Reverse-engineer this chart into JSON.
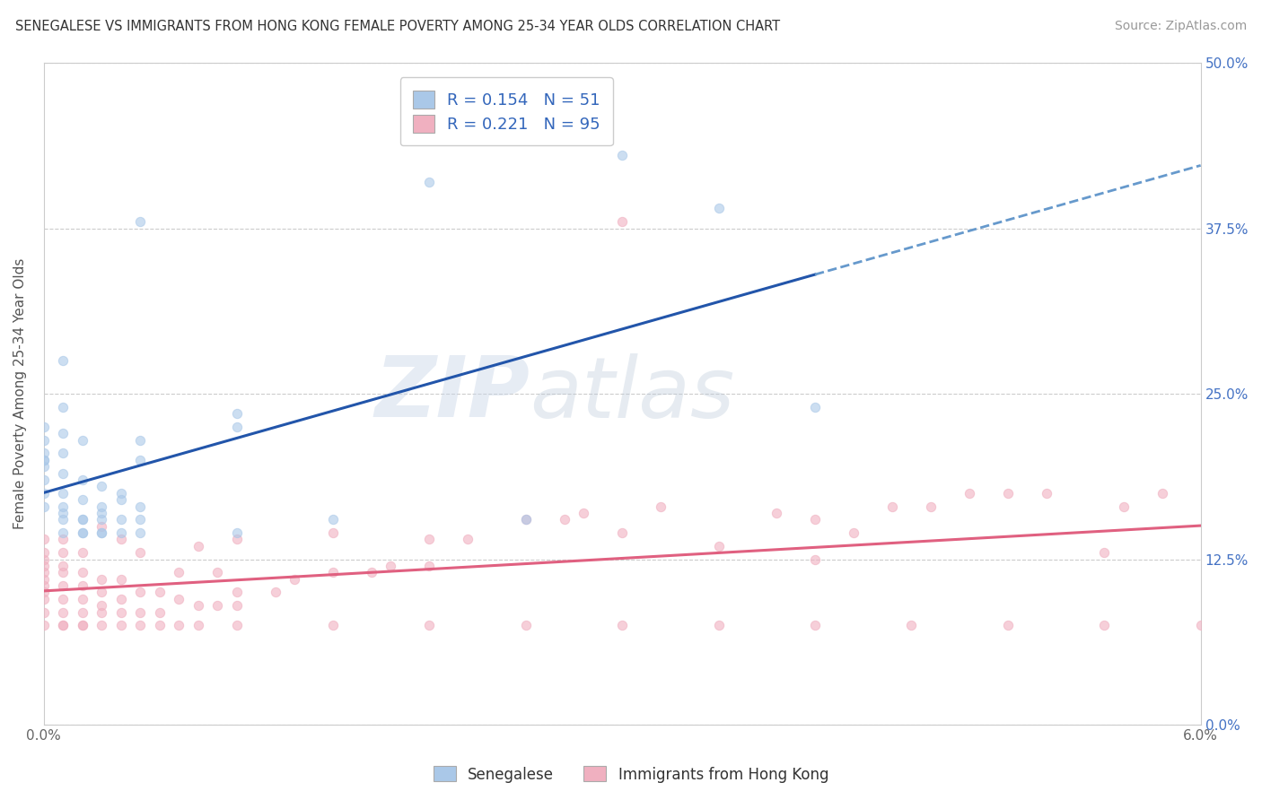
{
  "title": "SENEGALESE VS IMMIGRANTS FROM HONG KONG FEMALE POVERTY AMONG 25-34 YEAR OLDS CORRELATION CHART",
  "source": "Source: ZipAtlas.com",
  "ylabel_label": "Female Poverty Among 25-34 Year Olds",
  "x_min": 0.0,
  "x_max": 0.06,
  "y_min": 0.0,
  "y_max": 0.5,
  "x_tick_positions": [
    0.0,
    0.06
  ],
  "x_tick_labels": [
    "0.0%",
    "6.0%"
  ],
  "y_ticks": [
    0.0,
    0.125,
    0.25,
    0.375,
    0.5
  ],
  "y_tick_labels": [
    "",
    "",
    "",
    "",
    ""
  ],
  "right_y_ticks": [
    0.0,
    0.125,
    0.25,
    0.375,
    0.5
  ],
  "right_y_tick_labels": [
    "0.0%",
    "12.5%",
    "25.0%",
    "37.5%",
    "50.0%"
  ],
  "senegalese_color": "#aac8e8",
  "hk_color": "#f0b0c0",
  "senegalese_R": 0.154,
  "senegalese_N": 51,
  "hk_R": 0.221,
  "hk_N": 95,
  "trend_blue_color": "#2255aa",
  "trend_pink_color": "#e06080",
  "trend_blue_dashed_color": "#6699cc",
  "legend_label_blue": "Senegalese",
  "legend_label_pink": "Immigrants from Hong Kong",
  "watermark_zip": "ZIP",
  "watermark_atlas": "atlas",
  "background_color": "#ffffff",
  "plot_bg_color": "#ffffff",
  "grid_color": "#cccccc",
  "scatter_size": 55,
  "scatter_alpha": 0.6,
  "senegalese_x": [
    0.0,
    0.0,
    0.0,
    0.0,
    0.0,
    0.001,
    0.001,
    0.001,
    0.001,
    0.001,
    0.002,
    0.002,
    0.002,
    0.003,
    0.003,
    0.003,
    0.004,
    0.004,
    0.005,
    0.005,
    0.005,
    0.001,
    0.002,
    0.003,
    0.004,
    0.0,
    0.001,
    0.001,
    0.002,
    0.003,
    0.004,
    0.005,
    0.001,
    0.002,
    0.003,
    0.01,
    0.01,
    0.015,
    0.02,
    0.025,
    0.03,
    0.035,
    0.04,
    0.0,
    0.0,
    0.0,
    0.001,
    0.002,
    0.005,
    0.01,
    0.005
  ],
  "senegalese_y": [
    0.175,
    0.195,
    0.205,
    0.215,
    0.225,
    0.16,
    0.175,
    0.19,
    0.205,
    0.22,
    0.155,
    0.17,
    0.185,
    0.155,
    0.165,
    0.18,
    0.155,
    0.175,
    0.155,
    0.165,
    0.215,
    0.24,
    0.155,
    0.16,
    0.17,
    0.2,
    0.155,
    0.165,
    0.145,
    0.145,
    0.145,
    0.145,
    0.145,
    0.145,
    0.145,
    0.145,
    0.235,
    0.155,
    0.41,
    0.155,
    0.43,
    0.39,
    0.24,
    0.165,
    0.185,
    0.2,
    0.275,
    0.215,
    0.38,
    0.225,
    0.2
  ],
  "hk_x": [
    0.0,
    0.0,
    0.0,
    0.0,
    0.0,
    0.0,
    0.0,
    0.0,
    0.0,
    0.0,
    0.001,
    0.001,
    0.001,
    0.001,
    0.001,
    0.001,
    0.001,
    0.001,
    0.002,
    0.002,
    0.002,
    0.002,
    0.002,
    0.002,
    0.003,
    0.003,
    0.003,
    0.003,
    0.003,
    0.004,
    0.004,
    0.004,
    0.004,
    0.005,
    0.005,
    0.005,
    0.006,
    0.006,
    0.007,
    0.007,
    0.008,
    0.008,
    0.009,
    0.009,
    0.01,
    0.01,
    0.01,
    0.012,
    0.013,
    0.015,
    0.015,
    0.017,
    0.018,
    0.02,
    0.02,
    0.022,
    0.025,
    0.027,
    0.028,
    0.03,
    0.032,
    0.035,
    0.038,
    0.04,
    0.04,
    0.042,
    0.044,
    0.046,
    0.048,
    0.05,
    0.052,
    0.055,
    0.056,
    0.058,
    0.0,
    0.001,
    0.002,
    0.003,
    0.004,
    0.005,
    0.006,
    0.007,
    0.008,
    0.01,
    0.015,
    0.02,
    0.025,
    0.03,
    0.035,
    0.04,
    0.045,
    0.05,
    0.055,
    0.06,
    0.03
  ],
  "hk_y": [
    0.085,
    0.095,
    0.1,
    0.105,
    0.11,
    0.115,
    0.12,
    0.125,
    0.13,
    0.14,
    0.075,
    0.085,
    0.095,
    0.105,
    0.115,
    0.12,
    0.13,
    0.14,
    0.075,
    0.085,
    0.095,
    0.105,
    0.115,
    0.13,
    0.085,
    0.09,
    0.1,
    0.11,
    0.15,
    0.085,
    0.095,
    0.11,
    0.14,
    0.085,
    0.1,
    0.13,
    0.085,
    0.1,
    0.095,
    0.115,
    0.09,
    0.135,
    0.09,
    0.115,
    0.09,
    0.1,
    0.14,
    0.1,
    0.11,
    0.115,
    0.145,
    0.115,
    0.12,
    0.12,
    0.14,
    0.14,
    0.155,
    0.155,
    0.16,
    0.145,
    0.165,
    0.135,
    0.16,
    0.125,
    0.155,
    0.145,
    0.165,
    0.165,
    0.175,
    0.175,
    0.175,
    0.13,
    0.165,
    0.175,
    0.075,
    0.075,
    0.075,
    0.075,
    0.075,
    0.075,
    0.075,
    0.075,
    0.075,
    0.075,
    0.075,
    0.075,
    0.075,
    0.075,
    0.075,
    0.075,
    0.075,
    0.075,
    0.075,
    0.075,
    0.38
  ]
}
